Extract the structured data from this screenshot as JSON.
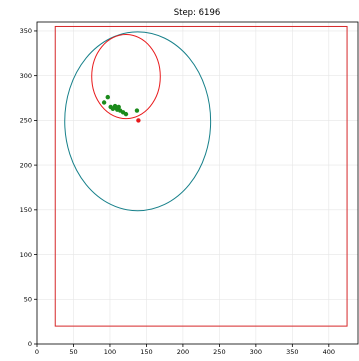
{
  "chart_data": {
    "type": "scatter",
    "title": "Step: 6196",
    "xlabel": "",
    "ylabel": "",
    "xlim": [
      0,
      440
    ],
    "ylim": [
      0,
      360
    ],
    "grid": true,
    "x_ticks": [
      0,
      50,
      100,
      150,
      200,
      250,
      300,
      350,
      400
    ],
    "y_ticks": [
      0,
      50,
      100,
      150,
      200,
      250,
      300,
      350
    ],
    "boundary_rect": {
      "x": [
        25,
        425
      ],
      "y": [
        20,
        355
      ],
      "color": "#d62728"
    },
    "ellipses": [
      {
        "name": "",
        "center": [
          138,
          249
        ],
        "rx": 100,
        "ry": 100,
        "color": "#17808a"
      },
      {
        "name": "",
        "center": [
          122,
          299
        ],
        "rx": 47,
        "ry": 47,
        "color": "#e8191b"
      }
    ],
    "series": [
      {
        "name": "",
        "color": "#1b8a1b",
        "points": [
          [
            92,
            270
          ],
          [
            97,
            276
          ],
          [
            101,
            265
          ],
          [
            104,
            263
          ],
          [
            107,
            266
          ],
          [
            108,
            264
          ],
          [
            110,
            262
          ],
          [
            112,
            265
          ],
          [
            114,
            261
          ],
          [
            118,
            259
          ],
          [
            122,
            257
          ],
          [
            137,
            261
          ]
        ]
      },
      {
        "name": "",
        "color": "#e8191b",
        "points": [
          [
            139,
            250
          ]
        ]
      }
    ]
  }
}
